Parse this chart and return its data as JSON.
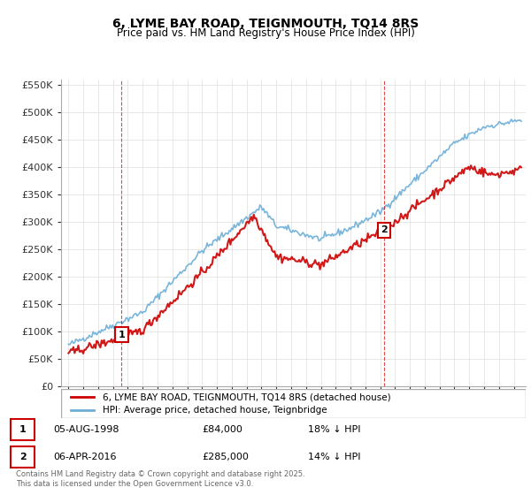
{
  "title": "6, LYME BAY ROAD, TEIGNMOUTH, TQ14 8RS",
  "subtitle": "Price paid vs. HM Land Registry's House Price Index (HPI)",
  "hpi_label": "HPI: Average price, detached house, Teignbridge",
  "property_label": "6, LYME BAY ROAD, TEIGNMOUTH, TQ14 8RS (detached house)",
  "sale1_date": "05-AUG-1998",
  "sale1_price": 84000,
  "sale1_hpi": "18% ↓ HPI",
  "sale2_date": "06-APR-2016",
  "sale2_price": 285000,
  "sale2_hpi": "14% ↓ HPI",
  "footer": "Contains HM Land Registry data © Crown copyright and database right 2025.\nThis data is licensed under the Open Government Licence v3.0.",
  "hpi_color": "#6baed6",
  "property_color": "#cc0000",
  "vline_color": "#cc0000",
  "ylim_min": 0,
  "ylim_max": 560000,
  "yticks": [
    0,
    50000,
    100000,
    150000,
    200000,
    250000,
    300000,
    350000,
    400000,
    450000,
    500000,
    550000
  ],
  "background_color": "#ffffff",
  "grid_color": "#dddddd"
}
